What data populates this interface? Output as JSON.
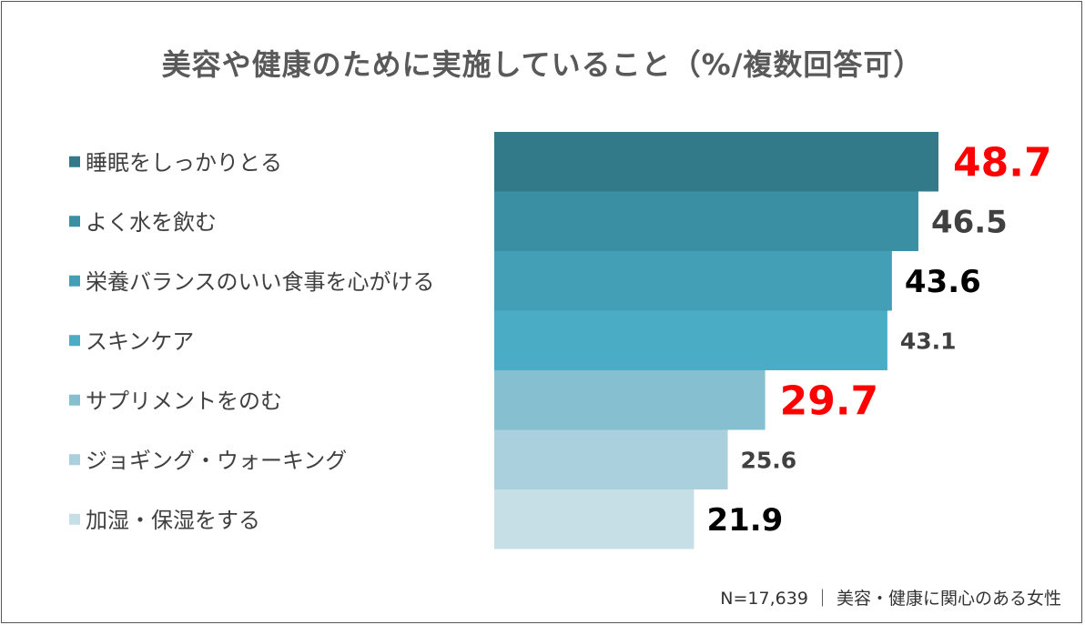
{
  "chart_data": {
    "type": "bar",
    "orientation": "horizontal",
    "title": "美容や健康のために実施していること（%/複数回答可）",
    "categories": [
      "睡眠をしっかりとる",
      "よく水を飲む",
      "栄養バランスのいい食事を心がける",
      "スキンケア",
      "サプリメントをのむ",
      "ジョギング・ウォーキング",
      "加湿・保湿をする"
    ],
    "values": [
      48.7,
      46.5,
      43.6,
      43.1,
      29.7,
      25.6,
      21.9
    ],
    "value_labels": [
      "48.7",
      "46.5",
      "43.6",
      "43.1",
      "29.7",
      "25.6",
      "21.9"
    ],
    "bar_colors": [
      "#327a89",
      "#3a8fa3",
      "#439fb6",
      "#4aacc5",
      "#86bfcf",
      "#a9d0dc",
      "#c6dfe7"
    ],
    "label_colors": [
      "#ff0000",
      "#404040",
      "#000000",
      "#404040",
      "#ff0000",
      "#404040",
      "#000000"
    ],
    "label_emphasis": [
      "large",
      "medium",
      "medium",
      "small",
      "large",
      "small",
      "medium"
    ],
    "xlim": [
      0,
      48.7
    ],
    "grid": false,
    "legend": "none"
  },
  "footnote": "N=17,639 ｜ 美容・健康に関心のある女性"
}
